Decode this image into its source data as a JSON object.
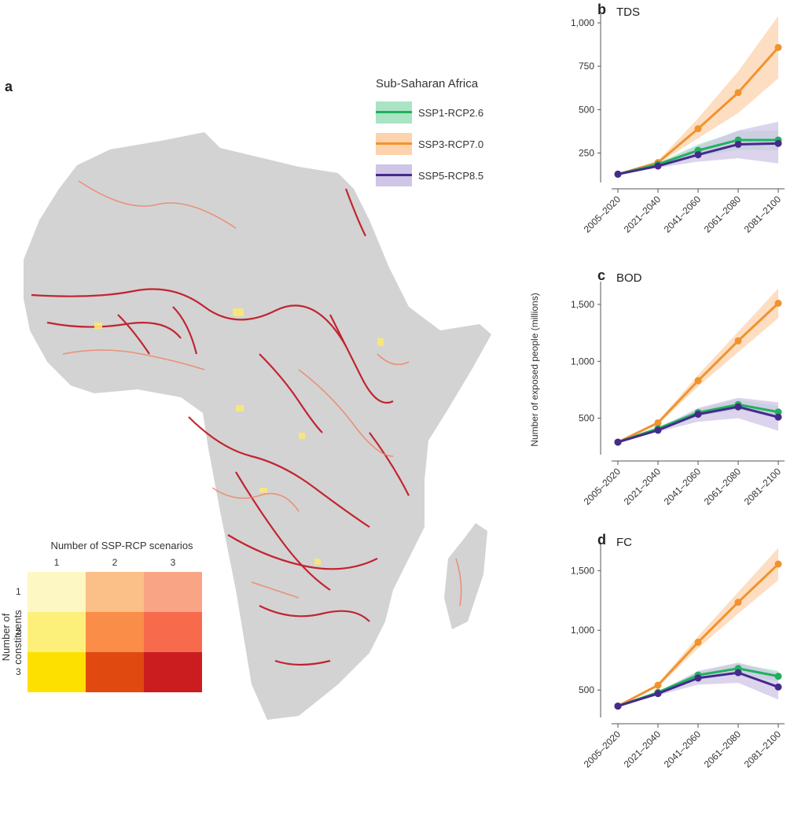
{
  "panel_a": {
    "letter": "a",
    "matrix": {
      "title": "Number of SSP-RCP scenarios",
      "col_labels": [
        "1",
        "2",
        "3"
      ],
      "row_axis_label": "Number of constituents",
      "row_labels": [
        "1",
        "2",
        "3"
      ],
      "colors": [
        [
          "#fdf7c4",
          "#fbbf88",
          "#f9a585"
        ],
        [
          "#fcf07a",
          "#fa8d48",
          "#f76a4c"
        ],
        [
          "#fde000",
          "#e0490f",
          "#cb1c20"
        ]
      ]
    },
    "map_colors": {
      "land": "#d3d3d3",
      "river_high": "#c1121f",
      "river_mid": "#f08060",
      "river_low": "#fbe774"
    }
  },
  "legend": {
    "title": "Sub-Saharan Africa",
    "items": [
      {
        "label": "SSP1-RCP2.6",
        "color": "#21b05e",
        "band": "#a9e4c4"
      },
      {
        "label": "SSP3-RCP7.0",
        "color": "#f0932e",
        "band": "#fcd3ad"
      },
      {
        "label": "SSP5-RCP8.5",
        "color": "#452a8c",
        "band": "#cfc5e6"
      }
    ]
  },
  "y_axis_label": "Number of exposed people (millions)",
  "chart_data": [
    {
      "type": "line",
      "letter": "b",
      "title": "TDS",
      "categories": [
        "2005–2020",
        "2021–2040",
        "2041–2060",
        "2061–2080",
        "2081–2100"
      ],
      "ylim": [
        80,
        1050
      ],
      "yticks": [
        250,
        500,
        750,
        1000
      ],
      "ytick_labels": [
        "250",
        "500",
        "750",
        "1,000"
      ],
      "series": [
        {
          "name": "SSP3-RCP7.0",
          "values": [
            128,
            195,
            390,
            598,
            858
          ],
          "lower": [
            128,
            188,
            335,
            480,
            680
          ],
          "upper": [
            128,
            205,
            450,
            720,
            1040
          ]
        },
        {
          "name": "SSP1-RCP2.6",
          "values": [
            128,
            185,
            265,
            325,
            325
          ],
          "lower": [
            128,
            178,
            230,
            270,
            265
          ],
          "upper": [
            128,
            192,
            300,
            375,
            380
          ]
        },
        {
          "name": "SSP5-RCP8.5",
          "values": [
            128,
            175,
            240,
            300,
            305
          ],
          "lower": [
            128,
            165,
            200,
            220,
            190
          ],
          "upper": [
            128,
            185,
            290,
            380,
            430
          ]
        }
      ]
    },
    {
      "type": "line",
      "letter": "c",
      "title": "BOD",
      "categories": [
        "2005–2020",
        "2021–2040",
        "2041–2060",
        "2061–2080",
        "2081–2100"
      ],
      "ylim": [
        180,
        1700
      ],
      "yticks": [
        500,
        1000,
        1500
      ],
      "ytick_labels": [
        "500",
        "1,000",
        "1,500"
      ],
      "series": [
        {
          "name": "SSP3-RCP7.0",
          "values": [
            290,
            460,
            830,
            1180,
            1510
          ],
          "lower": [
            290,
            445,
            780,
            1080,
            1380
          ],
          "upper": [
            290,
            475,
            880,
            1260,
            1640
          ]
        },
        {
          "name": "SSP1-RCP2.6",
          "values": [
            290,
            410,
            550,
            620,
            555
          ],
          "lower": [
            290,
            400,
            520,
            575,
            500
          ],
          "upper": [
            290,
            420,
            580,
            665,
            610
          ]
        },
        {
          "name": "SSP5-RCP8.5",
          "values": [
            290,
            395,
            535,
            600,
            510
          ],
          "lower": [
            290,
            380,
            470,
            500,
            390
          ],
          "upper": [
            290,
            410,
            590,
            680,
            640
          ]
        }
      ]
    },
    {
      "type": "line",
      "letter": "d",
      "title": "FC",
      "categories": [
        "2005–2020",
        "2021–2040",
        "2041–2060",
        "2061–2080",
        "2081–2100"
      ],
      "ylim": [
        270,
        1720
      ],
      "yticks": [
        500,
        1000,
        1500
      ],
      "ytick_labels": [
        "500",
        "1,000",
        "1,500"
      ],
      "series": [
        {
          "name": "SSP3-RCP7.0",
          "values": [
            365,
            540,
            900,
            1235,
            1555
          ],
          "lower": [
            365,
            525,
            850,
            1140,
            1420
          ],
          "upper": [
            365,
            555,
            950,
            1320,
            1690
          ]
        },
        {
          "name": "SSP1-RCP2.6",
          "values": [
            365,
            480,
            625,
            680,
            615
          ],
          "lower": [
            365,
            470,
            595,
            640,
            570
          ],
          "upper": [
            365,
            490,
            650,
            720,
            660
          ]
        },
        {
          "name": "SSP5-RCP8.5",
          "values": [
            365,
            470,
            600,
            645,
            525
          ],
          "lower": [
            365,
            455,
            545,
            560,
            420
          ],
          "upper": [
            365,
            485,
            660,
            730,
            640
          ]
        }
      ]
    }
  ]
}
